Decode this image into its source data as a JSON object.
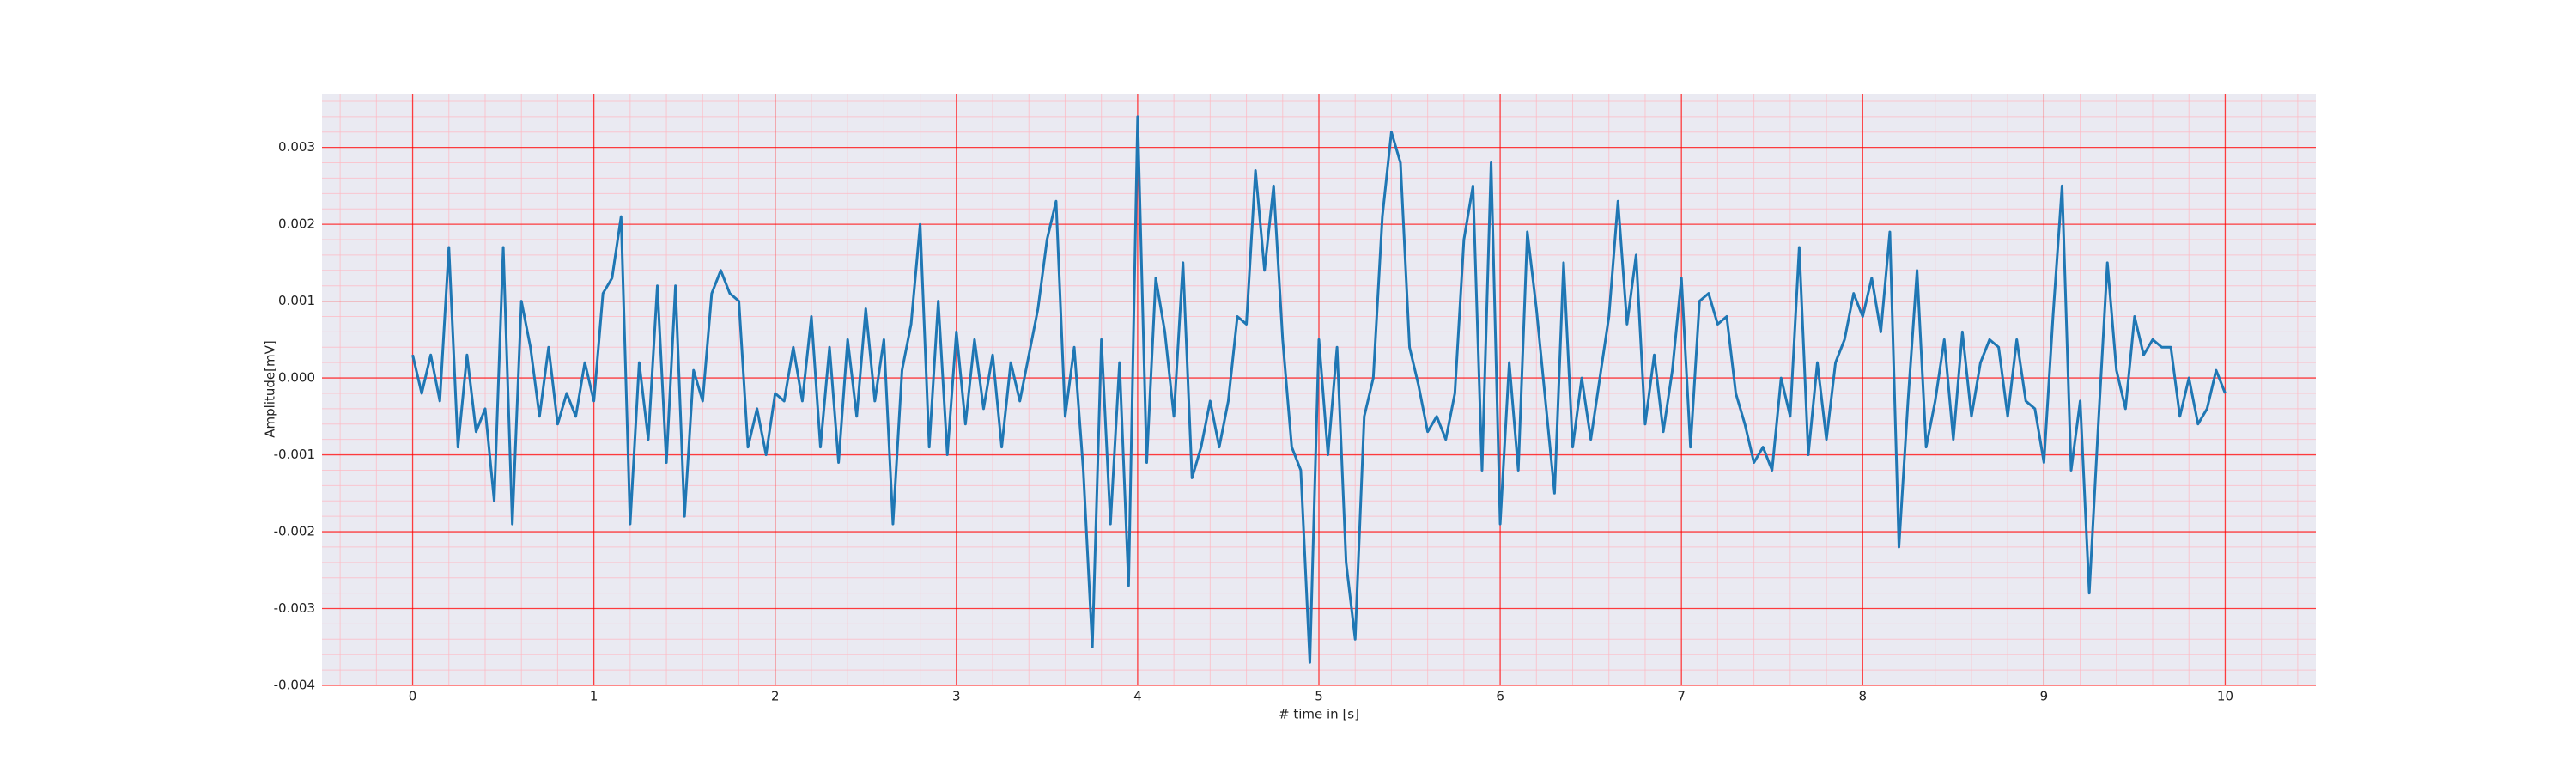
{
  "chart_data": {
    "type": "line",
    "xlabel": "# time in [s]",
    "ylabel": "Amplitude[mV]",
    "color": "#1f77b4",
    "background": "#eaeaf2",
    "grid": true,
    "grid_color": "#ff0000",
    "minor_grid": true,
    "minor_grid_color": "#ffb6c1",
    "xlim": [
      -0.5,
      10.5
    ],
    "xticks": [
      0,
      1,
      2,
      3,
      4,
      5,
      6,
      7,
      8,
      9,
      10
    ],
    "ylim": [
      -0.004,
      0.0037
    ],
    "yticks": [
      -0.004,
      -0.003,
      -0.002,
      -0.001,
      {
        "value": 0,
        "label": "0.000"
      },
      0.001,
      0.002,
      0.003
    ],
    "x": [
      0,
      0.05,
      0.1,
      0.15,
      0.2,
      0.25,
      0.3,
      0.35,
      0.4,
      0.45,
      0.5,
      0.55,
      0.6,
      0.65,
      0.7,
      0.75,
      0.8,
      0.85,
      0.9,
      0.95,
      1,
      1.05,
      1.1,
      1.15,
      1.2,
      1.25,
      1.3,
      1.35,
      1.4,
      1.45,
      1.5,
      1.55,
      1.6,
      1.65,
      1.7,
      1.75,
      1.8,
      1.85,
      1.9,
      1.95,
      2,
      2.05,
      2.1,
      2.15,
      2.2,
      2.25,
      2.3,
      2.35,
      2.4,
      2.45,
      2.5,
      2.55,
      2.6,
      2.65,
      2.7,
      2.75,
      2.8,
      2.85,
      2.9,
      2.95,
      3,
      3.05,
      3.1,
      3.15,
      3.2,
      3.25,
      3.3,
      3.35,
      3.4,
      3.45,
      3.5,
      3.55,
      3.6,
      3.65,
      3.7,
      3.75,
      3.8,
      3.85,
      3.9,
      3.95,
      4,
      4.05,
      4.1,
      4.15,
      4.2,
      4.25,
      4.3,
      4.35,
      4.4,
      4.45,
      4.5,
      4.55,
      4.6,
      4.65,
      4.7,
      4.75,
      4.8,
      4.85,
      4.9,
      4.95,
      5,
      5.05,
      5.1,
      5.15,
      5.2,
      5.25,
      5.3,
      5.35,
      5.4,
      5.45,
      5.5,
      5.55,
      5.6,
      5.65,
      5.7,
      5.75,
      5.8,
      5.85,
      5.9,
      5.95,
      6,
      6.05,
      6.1,
      6.15,
      6.2,
      6.25,
      6.3,
      6.35,
      6.4,
      6.45,
      6.5,
      6.55,
      6.6,
      6.65,
      6.7,
      6.75,
      6.8,
      6.85,
      6.9,
      6.95,
      7,
      7.05,
      7.1,
      7.15,
      7.2,
      7.25,
      7.3,
      7.35,
      7.4,
      7.45,
      7.5,
      7.55,
      7.6,
      7.65,
      7.7,
      7.75,
      7.8,
      7.85,
      7.9,
      7.95,
      8,
      8.05,
      8.1,
      8.15,
      8.2,
      8.25,
      8.3,
      8.35,
      8.4,
      8.45,
      8.5,
      8.55,
      8.6,
      8.65,
      8.7,
      8.75,
      8.8,
      8.85,
      8.9,
      8.95,
      9,
      9.05,
      9.1,
      9.15,
      9.2,
      9.25,
      9.3,
      9.35,
      9.4,
      9.45,
      9.5,
      9.55,
      9.6,
      9.65,
      9.7,
      9.75,
      9.8,
      9.85,
      9.9,
      9.95,
      10
    ],
    "values": [
      0.0003,
      -0.0002,
      0.0003,
      -0.0003,
      0.0017,
      -0.0009,
      0.0003,
      -0.0007,
      -0.0004,
      -0.0016,
      0.0017,
      -0.0019,
      0.001,
      0.0004,
      -0.0005,
      0.0004,
      -0.0006,
      -0.0002,
      -0.0005,
      0.0002,
      -0.0003,
      0.0011,
      0.0013,
      0.0021,
      -0.0019,
      0.0002,
      -0.0008,
      0.0012,
      -0.0011,
      0.0012,
      -0.0018,
      0.0001,
      -0.0003,
      0.0011,
      0.0014,
      0.0011,
      0.001,
      -0.0009,
      -0.0004,
      -0.001,
      -0.0002,
      -0.0003,
      0.0004,
      -0.0003,
      0.0008,
      -0.0009,
      0.0004,
      -0.0011,
      0.0005,
      -0.0005,
      0.0009,
      -0.0003,
      0.0005,
      -0.0019,
      0.0001,
      0.0007,
      0.002,
      -0.0009,
      0.001,
      -0.001,
      0.0006,
      -0.0006,
      0.0005,
      -0.0004,
      0.0003,
      -0.0009,
      0.0002,
      -0.0003,
      0.0003,
      0.0009,
      0.0018,
      0.0023,
      -0.0005,
      0.0004,
      -0.0012,
      -0.0035,
      0.0005,
      -0.0019,
      0.0002,
      -0.0027,
      0.0034,
      -0.0011,
      0.0013,
      0.0006,
      -0.0005,
      0.0015,
      -0.0013,
      -0.0009,
      -0.0003,
      -0.0009,
      -0.0003,
      0.0008,
      0.0007,
      0.0027,
      0.0014,
      0.0025,
      0.0005,
      -0.0009,
      -0.0012,
      -0.0037,
      0.0005,
      -0.001,
      0.0004,
      -0.0024,
      -0.0034,
      -0.0005,
      0,
      0.0021,
      0.0032,
      0.0028,
      0.0004,
      -0.0001,
      -0.0007,
      -0.0005,
      -0.0008,
      -0.0002,
      0.0018,
      0.0025,
      -0.0012,
      0.0028,
      -0.0019,
      0.0002,
      -0.0012,
      0.0019,
      0.0009,
      -0.0003,
      -0.0015,
      0.0015,
      -0.0009,
      0,
      -0.0008,
      0,
      0.0008,
      0.0023,
      0.0007,
      0.0016,
      -0.0006,
      0.0003,
      -0.0007,
      0.0001,
      0.0013,
      -0.0009,
      0.001,
      0.0011,
      0.0007,
      0.0008,
      -0.0002,
      -0.0006,
      -0.0011,
      -0.0009,
      -0.0012,
      0,
      -0.0005,
      0.0017,
      -0.001,
      0.0002,
      -0.0008,
      0.0002,
      0.0005,
      0.0011,
      0.0008,
      0.0013,
      0.0006,
      0.0019,
      -0.0022,
      -0.0003,
      0.0014,
      -0.0009,
      -0.0003,
      0.0005,
      -0.0008,
      0.0006,
      -0.0005,
      0.0002,
      0.0005,
      0.0004,
      -0.0005,
      0.0005,
      -0.0003,
      -0.0004,
      -0.0011,
      0.0008,
      0.0025,
      -0.0012,
      -0.0003,
      -0.0028,
      -0.0006,
      0.0015,
      0.0001,
      -0.0004,
      0.0008,
      0.0003,
      0.0005,
      0.0004,
      0.0004,
      -0.0005,
      0,
      -0.0006,
      -0.0004,
      0.0001,
      -0.0002
    ]
  }
}
